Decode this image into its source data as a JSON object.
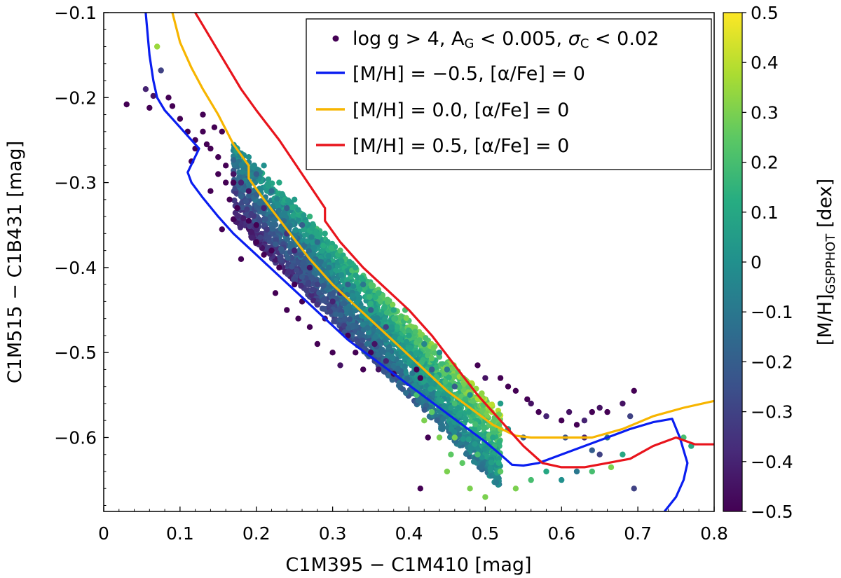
{
  "chart_data": {
    "type": "scatter",
    "title": "",
    "xlabel": "C1M395 − C1M410 [mag]",
    "ylabel": "C1M515 − C1B431 [mag]",
    "xlim": [
      0,
      0.8
    ],
    "ylim": [
      -0.687,
      -0.1
    ],
    "xticks": [
      0,
      0.1,
      0.2,
      0.3,
      0.4,
      0.5,
      0.6,
      0.7,
      0.8
    ],
    "xtick_labels": [
      "0",
      "0.1",
      "0.2",
      "0.3",
      "0.4",
      "0.5",
      "0.6",
      "0.7",
      "0.8"
    ],
    "yticks": [
      -0.1,
      -0.2,
      -0.3,
      -0.4,
      -0.5,
      -0.6
    ],
    "ytick_labels": [
      "−0.1",
      "−0.2",
      "−0.3",
      "−0.4",
      "−0.5",
      "−0.6"
    ],
    "grid": false,
    "legend_location": "top-right",
    "colorbar": {
      "label_main": "[M/H]",
      "label_sub": "GSPPHOT",
      "label_unit": " [dex]",
      "range": [
        -0.5,
        0.5
      ],
      "ticks": [
        0.5,
        0.4,
        0.3,
        0.2,
        0.1,
        0,
        -0.1,
        -0.2,
        -0.3,
        -0.4,
        -0.5
      ],
      "tick_labels": [
        "0.5",
        "0.4",
        "0.3",
        "0.2",
        "0.1",
        "0",
        "−0.1",
        "−0.2",
        "−0.3",
        "−0.4",
        "−0.5"
      ],
      "colormap": "viridis"
    },
    "scatter_series": {
      "name": "log g > 4,  A_G < 0.005,  σ_C < 0.02",
      "marker_color": "#440154",
      "points": [
        [
          0.03,
          -0.208,
          -0.5
        ],
        [
          0.055,
          -0.19,
          -0.4
        ],
        [
          0.065,
          -0.198,
          -0.45
        ],
        [
          0.07,
          -0.14,
          0.35
        ],
        [
          0.075,
          -0.168,
          -0.3
        ],
        [
          0.06,
          -0.212,
          -0.5
        ],
        [
          0.085,
          -0.2,
          -0.5
        ],
        [
          0.09,
          -0.21,
          -0.5
        ],
        [
          0.1,
          -0.225,
          -0.5
        ],
        [
          0.11,
          -0.24,
          -0.5
        ],
        [
          0.12,
          -0.25,
          -0.5
        ],
        [
          0.13,
          -0.24,
          -0.5
        ],
        [
          0.135,
          -0.255,
          -0.5
        ],
        [
          0.14,
          -0.26,
          -0.5
        ],
        [
          0.15,
          -0.27,
          -0.5
        ],
        [
          0.16,
          -0.28,
          -0.5
        ],
        [
          0.17,
          -0.29,
          -0.45
        ],
        [
          0.18,
          -0.3,
          -0.4
        ],
        [
          0.13,
          -0.22,
          -0.5
        ],
        [
          0.145,
          -0.235,
          -0.5
        ],
        [
          0.155,
          -0.24,
          -0.5
        ],
        [
          0.15,
          -0.29,
          -0.5
        ],
        [
          0.165,
          -0.32,
          -0.5
        ],
        [
          0.175,
          -0.33,
          -0.5
        ],
        [
          0.155,
          -0.355,
          -0.5
        ],
        [
          0.2,
          -0.37,
          -0.5
        ],
        [
          0.21,
          -0.385,
          -0.5
        ],
        [
          0.18,
          -0.39,
          -0.5
        ],
        [
          0.225,
          -0.43,
          -0.5
        ],
        [
          0.24,
          -0.45,
          -0.5
        ],
        [
          0.255,
          -0.46,
          -0.5
        ],
        [
          0.27,
          -0.47,
          -0.5
        ],
        [
          0.28,
          -0.49,
          -0.5
        ],
        [
          0.3,
          -0.5,
          -0.5
        ],
        [
          0.31,
          -0.515,
          -0.45
        ],
        [
          0.34,
          -0.52,
          -0.5
        ],
        [
          0.355,
          -0.49,
          -0.45
        ],
        [
          0.37,
          -0.51,
          -0.4
        ],
        [
          0.38,
          -0.525,
          -0.5
        ],
        [
          0.41,
          -0.52,
          -0.5
        ],
        [
          0.415,
          -0.53,
          -0.5
        ],
        [
          0.425,
          -0.6,
          -0.5
        ],
        [
          0.415,
          -0.66,
          -0.5
        ],
        [
          0.49,
          -0.515,
          -0.5
        ],
        [
          0.5,
          -0.53,
          -0.45
        ],
        [
          0.52,
          -0.53,
          -0.5
        ],
        [
          0.53,
          -0.54,
          -0.5
        ],
        [
          0.54,
          -0.545,
          -0.5
        ],
        [
          0.555,
          -0.555,
          -0.5
        ],
        [
          0.56,
          -0.56,
          -0.45
        ],
        [
          0.57,
          -0.57,
          -0.5
        ],
        [
          0.58,
          -0.575,
          -0.4
        ],
        [
          0.6,
          -0.58,
          -0.5
        ],
        [
          0.61,
          -0.57,
          -0.45
        ],
        [
          0.62,
          -0.585,
          -0.5
        ],
        [
          0.63,
          -0.58,
          -0.4
        ],
        [
          0.64,
          -0.57,
          -0.5
        ],
        [
          0.65,
          -0.565,
          -0.45
        ],
        [
          0.66,
          -0.57,
          -0.5
        ],
        [
          0.68,
          -0.56,
          -0.45
        ],
        [
          0.695,
          -0.545,
          -0.5
        ],
        [
          0.69,
          -0.575,
          -0.3
        ],
        [
          0.695,
          -0.66,
          -0.3
        ],
        [
          0.63,
          -0.6,
          -0.4
        ],
        [
          0.64,
          -0.615,
          -0.2
        ],
        [
          0.65,
          -0.62,
          -0.3
        ],
        [
          0.66,
          -0.6,
          -0.1
        ],
        [
          0.605,
          -0.6,
          -0.25
        ],
        [
          0.55,
          -0.6,
          -0.2
        ],
        [
          0.53,
          -0.59,
          0.0
        ],
        [
          0.51,
          -0.6,
          0.1
        ],
        [
          0.49,
          -0.62,
          0.2
        ],
        [
          0.47,
          -0.63,
          0.25
        ],
        [
          0.45,
          -0.64,
          0.3
        ],
        [
          0.46,
          -0.6,
          0.3
        ],
        [
          0.48,
          -0.66,
          0.3
        ],
        [
          0.5,
          -0.67,
          0.3
        ],
        [
          0.52,
          -0.64,
          0.25
        ],
        [
          0.54,
          -0.66,
          0.3
        ],
        [
          0.56,
          -0.65,
          0.2
        ],
        [
          0.58,
          -0.64,
          0.1
        ],
        [
          0.6,
          -0.65,
          0.0
        ],
        [
          0.62,
          -0.64,
          -0.1
        ],
        [
          0.64,
          -0.64,
          0.2
        ],
        [
          0.665,
          -0.635,
          0.3
        ],
        [
          0.68,
          -0.62,
          0.1
        ],
        [
          0.76,
          -0.6,
          0.2
        ],
        [
          0.77,
          -0.61,
          0.1
        ],
        [
          0.41,
          -0.55,
          0.2
        ],
        [
          0.43,
          -0.57,
          0.25
        ],
        [
          0.44,
          -0.6,
          0.3
        ],
        [
          0.42,
          -0.58,
          0.3
        ],
        [
          0.46,
          -0.56,
          0.2
        ],
        [
          0.455,
          -0.62,
          0.25
        ],
        [
          0.47,
          -0.585,
          0.15
        ],
        [
          0.5,
          -0.58,
          0.15
        ],
        [
          0.52,
          -0.56,
          0.05
        ],
        [
          0.44,
          -0.54,
          0.1
        ],
        [
          0.38,
          -0.45,
          0.1
        ],
        [
          0.36,
          -0.43,
          0.15
        ],
        [
          0.33,
          -0.4,
          0.1
        ],
        [
          0.31,
          -0.38,
          0.2
        ],
        [
          0.29,
          -0.36,
          0.1
        ],
        [
          0.27,
          -0.34,
          0.15
        ],
        [
          0.25,
          -0.32,
          0.05
        ],
        [
          0.23,
          -0.3,
          0.1
        ],
        [
          0.21,
          -0.28,
          0.0
        ],
        [
          0.19,
          -0.27,
          0.0
        ],
        [
          0.175,
          -0.26,
          0.05
        ],
        [
          0.395,
          -0.45,
          0.2
        ],
        [
          0.4,
          -0.48,
          0.1
        ],
        [
          0.39,
          -0.5,
          0.0
        ],
        [
          0.44,
          -0.5,
          0.0
        ],
        [
          0.45,
          -0.52,
          -0.1
        ],
        [
          0.42,
          -0.49,
          -0.05
        ],
        [
          0.48,
          -0.55,
          0.0
        ],
        [
          0.295,
          -0.4,
          -0.1
        ],
        [
          0.32,
          -0.42,
          -0.2
        ],
        [
          0.28,
          -0.37,
          -0.15
        ],
        [
          0.26,
          -0.35,
          -0.2
        ],
        [
          0.24,
          -0.33,
          -0.2
        ],
        [
          0.22,
          -0.31,
          -0.15
        ],
        [
          0.2,
          -0.29,
          -0.2
        ],
        [
          0.34,
          -0.42,
          -0.1
        ],
        [
          0.35,
          -0.45,
          -0.2
        ],
        [
          0.37,
          -0.47,
          -0.3
        ],
        [
          0.43,
          -0.52,
          -0.2
        ],
        [
          0.46,
          -0.54,
          -0.2
        ],
        [
          0.12,
          -0.26,
          -0.5
        ],
        [
          0.115,
          -0.275,
          -0.5
        ],
        [
          0.14,
          -0.31,
          -0.5
        ],
        [
          0.2,
          -0.35,
          -0.5
        ],
        [
          0.22,
          -0.38,
          -0.5
        ],
        [
          0.23,
          -0.4,
          -0.5
        ],
        [
          0.25,
          -0.42,
          -0.5
        ],
        [
          0.26,
          -0.44,
          -0.5
        ],
        [
          0.29,
          -0.46,
          -0.45
        ],
        [
          0.32,
          -0.48,
          -0.5
        ],
        [
          0.33,
          -0.5,
          -0.5
        ],
        [
          0.35,
          -0.5,
          -0.5
        ],
        [
          0.36,
          -0.52,
          -0.45
        ],
        [
          0.25,
          -0.38,
          -0.4
        ],
        [
          0.27,
          -0.4,
          -0.45
        ],
        [
          0.3,
          -0.44,
          -0.4
        ],
        [
          0.31,
          -0.43,
          -0.35
        ],
        [
          0.28,
          -0.42,
          -0.3
        ],
        [
          0.24,
          -0.36,
          -0.35
        ],
        [
          0.21,
          -0.33,
          -0.4
        ],
        [
          0.19,
          -0.31,
          -0.45
        ],
        [
          0.17,
          -0.3,
          -0.5
        ],
        [
          0.16,
          -0.3,
          -0.5
        ],
        [
          0.19,
          -0.345,
          -0.5
        ]
      ]
    },
    "series": [
      {
        "name": "[M/H] = −0.5,  [α/Fe] = 0",
        "color": "#0a1ef0",
        "x": [
          0.055,
          0.06,
          0.065,
          0.07,
          0.08,
          0.09,
          0.1,
          0.11,
          0.125,
          0.11,
          0.115,
          0.13,
          0.15,
          0.17,
          0.2,
          0.23,
          0.26,
          0.29,
          0.32,
          0.35,
          0.38,
          0.41,
          0.44,
          0.47,
          0.5,
          0.52,
          0.535,
          0.55,
          0.57,
          0.6,
          0.63,
          0.66,
          0.69,
          0.72,
          0.745,
          0.755,
          0.765,
          0.76,
          0.75,
          0.735
        ],
        "y": [
          -0.1,
          -0.15,
          -0.18,
          -0.2,
          -0.215,
          -0.225,
          -0.235,
          -0.245,
          -0.26,
          -0.288,
          -0.3,
          -0.318,
          -0.34,
          -0.36,
          -0.385,
          -0.41,
          -0.435,
          -0.46,
          -0.485,
          -0.505,
          -0.525,
          -0.545,
          -0.565,
          -0.585,
          -0.605,
          -0.62,
          -0.632,
          -0.633,
          -0.63,
          -0.62,
          -0.61,
          -0.6,
          -0.59,
          -0.582,
          -0.578,
          -0.6,
          -0.63,
          -0.65,
          -0.67,
          -0.687
        ]
      },
      {
        "name": "[M/H] = 0.0,  [α/Fe] = 0",
        "color": "#f7b500",
        "x": [
          0.09,
          0.1,
          0.115,
          0.13,
          0.15,
          0.17,
          0.19,
          0.19,
          0.21,
          0.24,
          0.27,
          0.3,
          0.33,
          0.36,
          0.39,
          0.42,
          0.45,
          0.48,
          0.51,
          0.54,
          0.56,
          0.6,
          0.64,
          0.68,
          0.72,
          0.76,
          0.8
        ],
        "y": [
          -0.1,
          -0.135,
          -0.165,
          -0.19,
          -0.22,
          -0.255,
          -0.28,
          -0.295,
          -0.32,
          -0.355,
          -0.39,
          -0.42,
          -0.445,
          -0.47,
          -0.495,
          -0.52,
          -0.545,
          -0.565,
          -0.585,
          -0.598,
          -0.6,
          -0.6,
          -0.6,
          -0.59,
          -0.575,
          -0.565,
          -0.557
        ]
      },
      {
        "name": "[M/H] = 0.5,  [α/Fe] = 0",
        "color": "#e8141c",
        "x": [
          0.12,
          0.13,
          0.14,
          0.16,
          0.18,
          0.2,
          0.23,
          0.26,
          0.29,
          0.29,
          0.31,
          0.34,
          0.37,
          0.4,
          0.43,
          0.46,
          0.49,
          0.52,
          0.55,
          0.575,
          0.6,
          0.63,
          0.66,
          0.69,
          0.72,
          0.75,
          0.775,
          0.8
        ],
        "y": [
          -0.1,
          -0.115,
          -0.13,
          -0.16,
          -0.19,
          -0.215,
          -0.25,
          -0.29,
          -0.33,
          -0.345,
          -0.37,
          -0.4,
          -0.425,
          -0.45,
          -0.48,
          -0.515,
          -0.55,
          -0.58,
          -0.61,
          -0.63,
          -0.635,
          -0.635,
          -0.63,
          -0.625,
          -0.61,
          -0.6,
          -0.608,
          -0.608
        ]
      }
    ]
  }
}
